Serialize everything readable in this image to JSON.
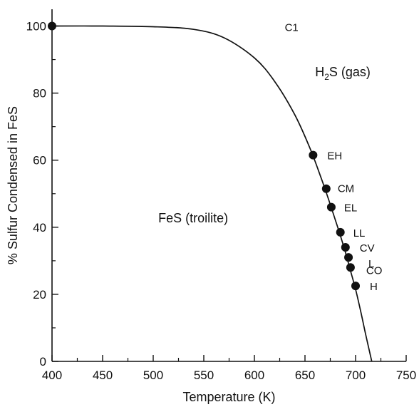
{
  "chart_data": {
    "type": "line",
    "xlabel": "Temperature (K)",
    "ylabel": "% Sulfur Condensed in FeS",
    "xlim": [
      400,
      750
    ],
    "ylim": [
      0,
      105
    ],
    "xticks": [
      400,
      450,
      500,
      550,
      600,
      650,
      700,
      750
    ],
    "yticks": [
      0,
      20,
      40,
      60,
      80,
      100
    ],
    "grid": false,
    "series": [
      {
        "x": [
          400,
          450,
          500,
          540,
          570,
          600,
          620,
          640,
          655,
          665,
          672,
          678,
          685,
          690,
          695,
          700,
          705,
          710,
          716
        ],
        "y": [
          100,
          100,
          99.8,
          99,
          96.5,
          90.5,
          83.5,
          73.5,
          63.5,
          55.5,
          49.5,
          44,
          37.5,
          32.5,
          27,
          21.5,
          15,
          8,
          0
        ]
      }
    ],
    "points": [
      {
        "label": "",
        "x": 400,
        "y": 100
      },
      {
        "label": "EH",
        "x": 658,
        "y": 61.5
      },
      {
        "label": "CM",
        "x": 671,
        "y": 51.5
      },
      {
        "label": "EL",
        "x": 676,
        "y": 46
      },
      {
        "label": "LL",
        "x": 685,
        "y": 38.5
      },
      {
        "label": "CV",
        "x": 690,
        "y": 34
      },
      {
        "label": "L",
        "x": 693,
        "y": 31
      },
      {
        "label": "CO",
        "x": 695,
        "y": 28
      },
      {
        "label": "H",
        "x": 700,
        "y": 22.5
      }
    ],
    "annotations": [
      {
        "text": "C1",
        "x": 630,
        "y": 98.5
      },
      {
        "text": "FeS (troilite)",
        "x": 505,
        "y": 41.5
      }
    ],
    "region_label": {
      "main": "H",
      "sub": "2",
      "tail": "S (gas)",
      "x": 660,
      "y": 85
    }
  }
}
